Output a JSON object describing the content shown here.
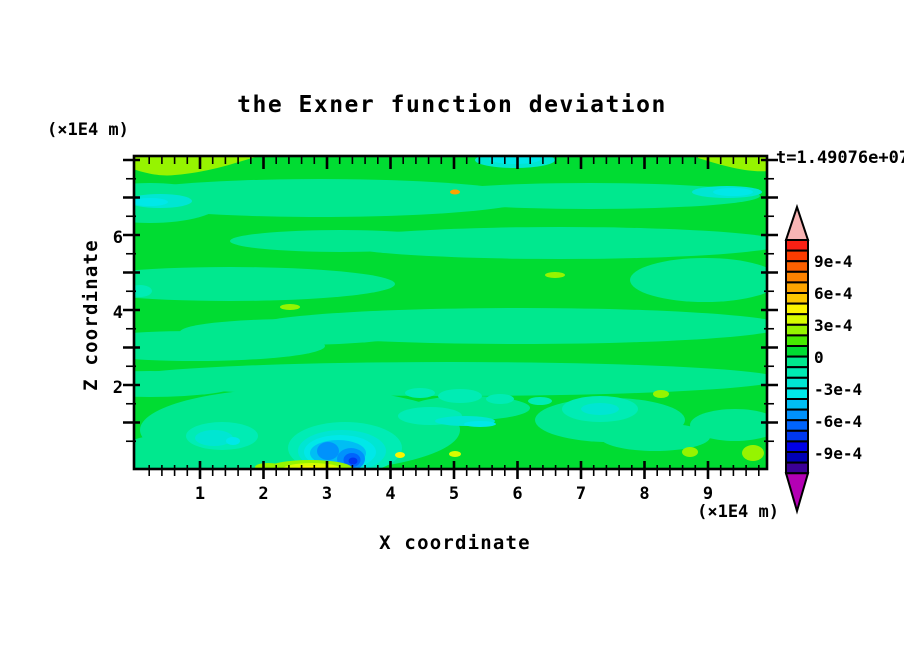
{
  "page": {
    "background": "#ffffff"
  },
  "title": "the Exner function deviation",
  "time_label": "t=1.49076e+07",
  "axes": {
    "x": {
      "label": "X coordinate",
      "unit_label": "(×1E4 m)",
      "tick_labels": [
        "1",
        "2",
        "3",
        "4",
        "5",
        "6",
        "7",
        "8",
        "9"
      ]
    },
    "y": {
      "label": "Z coordinate",
      "unit_label": "(×1E4 m)",
      "tick_labels": [
        "6",
        "4",
        "2"
      ]
    }
  },
  "colorbar": {
    "labels": [
      "9e-4",
      "6e-4",
      "3e-4",
      "0",
      "-3e-4",
      "-6e-4",
      "-9e-4"
    ],
    "cell_colors": [
      "#f82014",
      "#fc3c00",
      "#fc6000",
      "#fc8200",
      "#fca400",
      "#fcc600",
      "#fcf400",
      "#d8fc00",
      "#96f400",
      "#46ea00",
      "#00dc32",
      "#00e88e",
      "#00ecb4",
      "#00e6d2",
      "#00e8e8",
      "#00bef4",
      "#0092fc",
      "#0064fc",
      "#0038f0",
      "#0000e6",
      "#0000b4",
      "#3c0096"
    ],
    "over_arrow_color": "#f8b4b4",
    "under_arrow_color": "#b400b4"
  },
  "field_colors": {
    "p4": "#fcf400",
    "p3": "#d8fc00",
    "p2": "#96f400",
    "p1": "#00dc32",
    "m1": "#00e88e",
    "m2": "#00ecb4",
    "m3": "#00e6d2",
    "m4": "#00e8e8",
    "m5": "#00bef4",
    "m6": "#0092fc",
    "m7": "#0064fc",
    "m8": "#0038f0",
    "gold": "#fca400"
  },
  "chart_data": {
    "type": "heatmap",
    "subtype": "filled-contour",
    "title": "the Exner function deviation",
    "xlabel": "X coordinate",
    "ylabel": "Z coordinate",
    "x_unit": "×1E4 m",
    "y_unit": "×1E4 m",
    "time_annotation": "t=1.49076e+07",
    "xlim": [
      0,
      9.9
    ],
    "ylim": [
      0,
      8.1
    ],
    "x_major_ticks": [
      1,
      2,
      3,
      4,
      5,
      6,
      7,
      8,
      9
    ],
    "x_minor_tick_step": 0.2,
    "y_labeled_ticks": [
      2,
      4,
      6
    ],
    "y_minor_tick_step": 0.5,
    "grid": false,
    "legend_position": "right-colorbar",
    "contour_interval": 0.0001,
    "colorbar_labeled_levels": [
      0.0009,
      0.0006,
      0.0003,
      0,
      -0.0003,
      -0.0006,
      -0.0009
    ],
    "value_span": [
      -0.0011,
      0.0011
    ],
    "dominant_levels": {
      "0_to_1e-4": "green over most of the domain",
      "-1e-4_to_0": "spring-green wavy horizontal bands"
    },
    "notable_features": [
      {
        "x": 3.4,
        "z": 0.0,
        "value": -0.00055,
        "note": "deep blue negative minimum near bottom boundary"
      },
      {
        "x": 3.0,
        "z": 0.25,
        "value": -0.00035,
        "note": "secondary blue core of the same blob"
      },
      {
        "x": 2.75,
        "z": 0.0,
        "value": 0.00035,
        "note": "yellow positive strip on bottom boundary under the minimum"
      },
      {
        "x": 1.35,
        "z": 0.64,
        "value": -0.0003,
        "note": "cyan/turquoise patch lower left"
      },
      {
        "x": 0.8,
        "z": 8.0,
        "value": 0.00015,
        "note": "chartreuse band in top-left corner"
      },
      {
        "x": 9.4,
        "z": 8.0,
        "value": 0.00015,
        "note": "chartreuse band in top-right corner"
      },
      {
        "x": 5.96,
        "z": 8.0,
        "value": -0.0002,
        "note": "cyan lens on top boundary"
      },
      {
        "x": 9.3,
        "z": 7.15,
        "value": -0.0002,
        "note": "cyan lens near right boundary"
      },
      {
        "x": 0.21,
        "z": 6.9,
        "value": -0.0002,
        "note": "cyan lens on left boundary"
      },
      {
        "x": 5.02,
        "z": 7.15,
        "value": 0.0004,
        "note": "tiny gold positive spot mid-top"
      },
      {
        "x": 2.42,
        "z": 4.08,
        "value": 0.00015,
        "note": "small chartreuse spot"
      },
      {
        "x": 6.59,
        "z": 4.93,
        "value": 0.00015,
        "note": "small chartreuse spot"
      },
      {
        "x": 9.71,
        "z": 0.19,
        "value": 0.00015,
        "note": "chartreuse spot bottom-right"
      },
      {
        "x": 7.3,
        "z": 1.36,
        "value": -0.0002,
        "note": "aquamarine patch bottom-right quadrant"
      },
      {
        "x": 4.15,
        "z": 0.13,
        "value": 0.0003,
        "note": "small yellow dot on bottom boundary"
      }
    ]
  }
}
